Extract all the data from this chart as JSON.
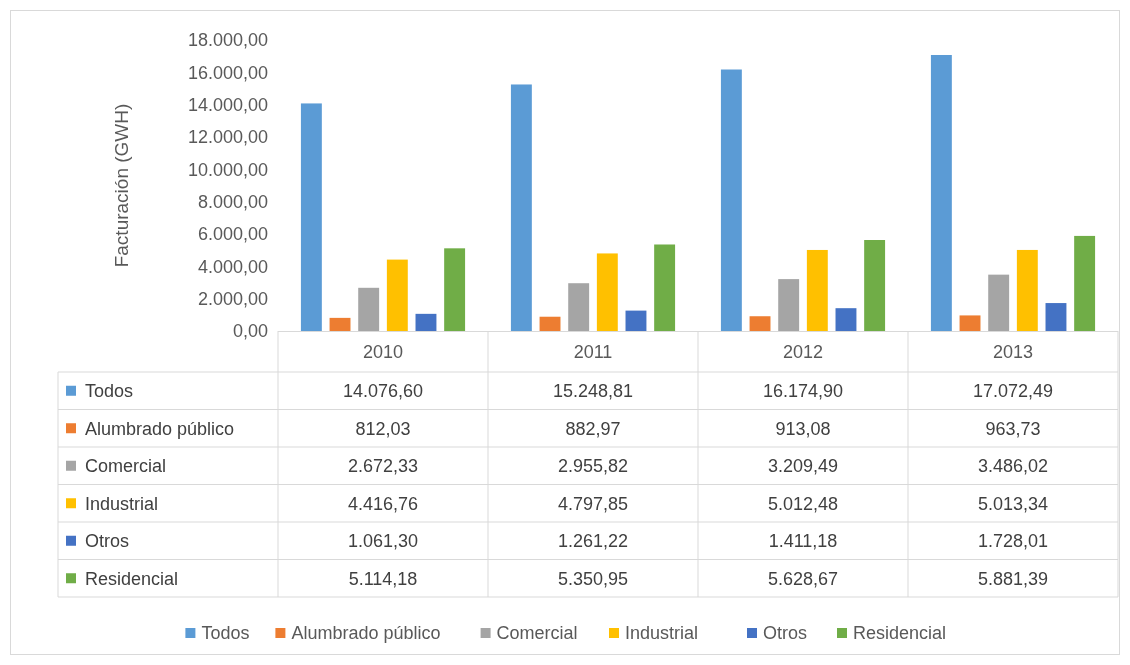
{
  "chart_data": {
    "type": "bar",
    "ylabel": "Facturación (GWH)",
    "categories": [
      "2010",
      "2011",
      "2012",
      "2013"
    ],
    "ylim": [
      0,
      18000
    ],
    "yticks": [
      {
        "value": 0,
        "label": "0,00"
      },
      {
        "value": 2000,
        "label": "2.000,00"
      },
      {
        "value": 4000,
        "label": "4.000,00"
      },
      {
        "value": 6000,
        "label": "6.000,00"
      },
      {
        "value": 8000,
        "label": "8.000,00"
      },
      {
        "value": 10000,
        "label": "10.000,00"
      },
      {
        "value": 12000,
        "label": "12.000,00"
      },
      {
        "value": 14000,
        "label": "14.000,00"
      },
      {
        "value": 16000,
        "label": "16.000,00"
      },
      {
        "value": 18000,
        "label": "18.000,00"
      }
    ],
    "grid": false,
    "legend": "bottom",
    "series": [
      {
        "name": "Todos",
        "color": "#5b9bd5",
        "values": [
          14076.6,
          15248.81,
          16174.9,
          17072.49
        ],
        "value_labels": [
          "14.076,60",
          "15.248,81",
          "16.174,90",
          "17.072,49"
        ]
      },
      {
        "name": "Alumbrado público",
        "color": "#ed7d31",
        "values": [
          812.03,
          882.97,
          913.08,
          963.73
        ],
        "value_labels": [
          "812,03",
          "882,97",
          "913,08",
          "963,73"
        ]
      },
      {
        "name": "Comercial",
        "color": "#a5a5a5",
        "values": [
          2672.33,
          2955.82,
          3209.49,
          3486.02
        ],
        "value_labels": [
          "2.672,33",
          "2.955,82",
          "3.209,49",
          "3.486,02"
        ]
      },
      {
        "name": "Industrial",
        "color": "#ffc000",
        "values": [
          4416.76,
          4797.85,
          5012.48,
          5013.34
        ],
        "value_labels": [
          "4.416,76",
          "4.797,85",
          "5.012,48",
          "5.013,34"
        ]
      },
      {
        "name": "Otros",
        "color": "#4472c4",
        "values": [
          1061.3,
          1261.22,
          1411.18,
          1728.01
        ],
        "value_labels": [
          "1.061,30",
          "1.261,22",
          "1.411,18",
          "1.728,01"
        ]
      },
      {
        "name": "Residencial",
        "color": "#70ad47",
        "values": [
          5114.18,
          5350.95,
          5628.67,
          5881.39
        ],
        "value_labels": [
          "5.114,18",
          "5.350,95",
          "5.628,67",
          "5.881,39"
        ]
      }
    ]
  }
}
